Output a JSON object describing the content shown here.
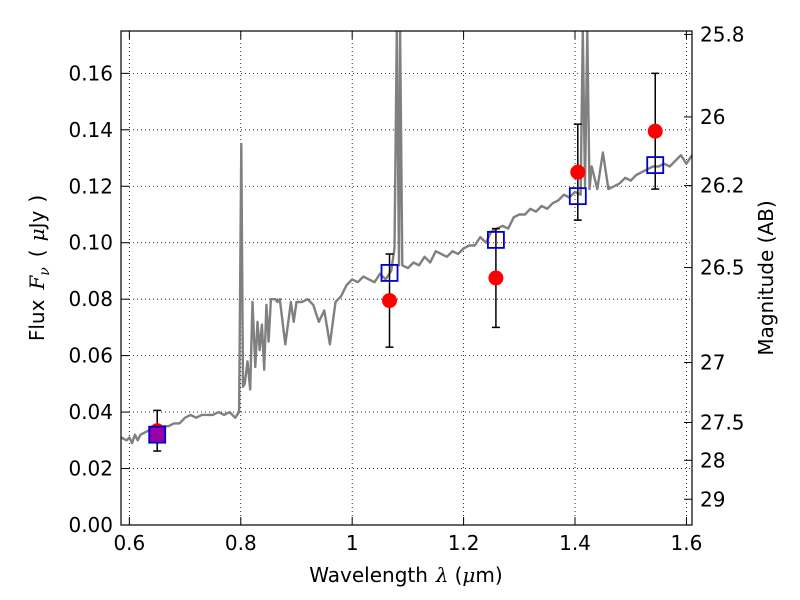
{
  "chart_data": {
    "type": "scatter",
    "title": "",
    "xlabel": {
      "prefix": "Wavelength",
      "symbol": "λ",
      "unit_open": "(",
      "unit_mu": "μ",
      "unit_rest": "m)"
    },
    "ylabel": {
      "prefix": "Flux",
      "symbol": "F",
      "subscript": "ν",
      "unit_open": "(",
      "unit_mu": "μ",
      "unit_rest": "Jy",
      "unit_close": ")"
    },
    "ylabel_right": "Magnitude (AB)",
    "xlim": [
      0.585,
      1.61
    ],
    "ylim": [
      0.0,
      0.175
    ],
    "grid": true,
    "xticks": [
      {
        "value": 0.6,
        "label": "0.6"
      },
      {
        "value": 0.8,
        "label": "0.8"
      },
      {
        "value": 1.0,
        "label": "1"
      },
      {
        "value": 1.2,
        "label": "1.2"
      },
      {
        "value": 1.4,
        "label": "1.4"
      },
      {
        "value": 1.6,
        "label": "1.6"
      }
    ],
    "yticks": [
      {
        "value": 0.0,
        "label": "0.00"
      },
      {
        "value": 0.02,
        "label": "0.02"
      },
      {
        "value": 0.04,
        "label": "0.04"
      },
      {
        "value": 0.06,
        "label": "0.06"
      },
      {
        "value": 0.08,
        "label": "0.08"
      },
      {
        "value": 0.1,
        "label": "0.10"
      },
      {
        "value": 0.12,
        "label": "0.12"
      },
      {
        "value": 0.14,
        "label": "0.14"
      },
      {
        "value": 0.16,
        "label": "0.16"
      }
    ],
    "right_ticks": [
      {
        "label": "25.8",
        "mag": 25.8
      },
      {
        "label": "26",
        "mag": 26.0
      },
      {
        "label": "26.2",
        "mag": 26.2
      },
      {
        "label": "26.5",
        "mag": 26.5
      },
      {
        "label": "27",
        "mag": 27.0
      },
      {
        "label": "27.5",
        "mag": 27.5
      },
      {
        "label": "28",
        "mag": 28.0
      },
      {
        "label": "29",
        "mag": 29.0
      }
    ],
    "series": [
      {
        "kind": "line",
        "color": "#808080",
        "x": [
          0.585,
          0.595,
          0.6,
          0.605,
          0.61,
          0.615,
          0.62,
          0.63,
          0.64,
          0.65,
          0.66,
          0.67,
          0.68,
          0.69,
          0.7,
          0.71,
          0.72,
          0.73,
          0.74,
          0.75,
          0.76,
          0.77,
          0.78,
          0.79,
          0.797,
          0.801,
          0.804,
          0.807,
          0.812,
          0.817,
          0.821,
          0.826,
          0.83,
          0.834,
          0.838,
          0.842,
          0.846,
          0.85,
          0.854,
          0.858,
          0.862,
          0.866,
          0.87,
          0.88,
          0.89,
          0.895,
          0.9,
          0.91,
          0.92,
          0.93,
          0.94,
          0.95,
          0.96,
          0.97,
          0.98,
          0.99,
          1.0,
          1.01,
          1.02,
          1.03,
          1.04,
          1.05,
          1.06,
          1.07,
          1.076,
          1.08,
          1.084,
          1.086,
          1.09,
          1.1,
          1.11,
          1.12,
          1.13,
          1.14,
          1.15,
          1.16,
          1.17,
          1.18,
          1.19,
          1.2,
          1.21,
          1.22,
          1.23,
          1.24,
          1.25,
          1.26,
          1.27,
          1.28,
          1.29,
          1.3,
          1.31,
          1.32,
          1.33,
          1.34,
          1.35,
          1.36,
          1.37,
          1.38,
          1.39,
          1.4,
          1.41,
          1.414,
          1.418,
          1.422,
          1.426,
          1.43,
          1.44,
          1.45,
          1.46,
          1.47,
          1.48,
          1.49,
          1.5,
          1.51,
          1.52,
          1.53,
          1.54,
          1.55,
          1.56,
          1.57,
          1.58,
          1.59,
          1.6,
          1.61
        ],
        "y": [
          0.031,
          0.03,
          0.031,
          0.029,
          0.032,
          0.03,
          0.032,
          0.033,
          0.034,
          0.034,
          0.035,
          0.035,
          0.036,
          0.036,
          0.038,
          0.039,
          0.038,
          0.039,
          0.039,
          0.039,
          0.04,
          0.039,
          0.04,
          0.038,
          0.04,
          0.135,
          0.049,
          0.05,
          0.058,
          0.048,
          0.079,
          0.056,
          0.072,
          0.062,
          0.071,
          0.055,
          0.078,
          0.065,
          0.08,
          0.08,
          0.08,
          0.079,
          0.08,
          0.064,
          0.079,
          0.072,
          0.079,
          0.079,
          0.08,
          0.078,
          0.072,
          0.076,
          0.064,
          0.079,
          0.081,
          0.085,
          0.087,
          0.086,
          0.088,
          0.087,
          0.086,
          0.089,
          0.087,
          0.09,
          0.098,
          0.175,
          0.092,
          0.175,
          0.092,
          0.091,
          0.093,
          0.092,
          0.095,
          0.093,
          0.097,
          0.096,
          0.095,
          0.097,
          0.096,
          0.098,
          0.099,
          0.099,
          0.102,
          0.1,
          0.104,
          0.105,
          0.106,
          0.105,
          0.109,
          0.11,
          0.11,
          0.112,
          0.111,
          0.113,
          0.112,
          0.114,
          0.115,
          0.117,
          0.116,
          0.118,
          0.117,
          0.175,
          0.12,
          0.175,
          0.119,
          0.127,
          0.119,
          0.132,
          0.119,
          0.12,
          0.121,
          0.123,
          0.122,
          0.124,
          0.125,
          0.126,
          0.127,
          0.127,
          0.128,
          0.127,
          0.129,
          0.131,
          0.128,
          0.131
        ]
      },
      {
        "kind": "points",
        "marker": "circle",
        "color": "#ff0000",
        "x": [
          0.65,
          1.067,
          1.258,
          1.405,
          1.544
        ],
        "y": [
          0.0334,
          0.0795,
          0.0875,
          0.125,
          0.1395
        ],
        "yerr": [
          0.0072,
          0.0165,
          0.0175,
          0.017,
          0.0205
        ]
      },
      {
        "kind": "points",
        "marker": "square",
        "color": "#0000cc",
        "x": [
          0.65,
          1.067,
          1.258,
          1.405,
          1.544
        ],
        "y": [
          0.032,
          0.0893,
          0.101,
          0.1165,
          0.1275
        ]
      }
    ],
    "overlap_color": "#9900aa"
  }
}
